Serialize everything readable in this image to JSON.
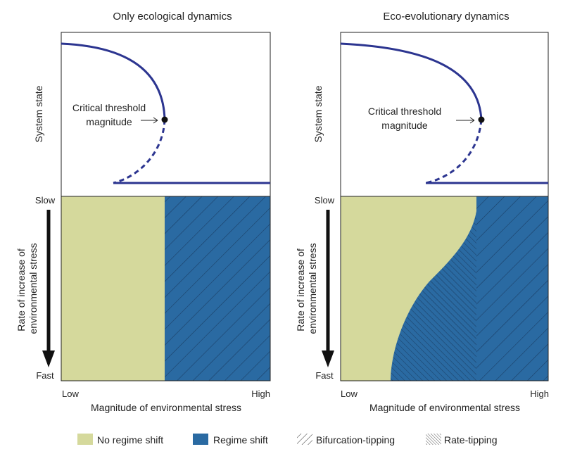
{
  "panels": [
    {
      "title": "Only ecological dynamics",
      "y_label_top": "System state",
      "threshold_label_line1": "Critical threshold",
      "threshold_label_line2": "magnitude",
      "y_label_bottom_line1": "Rate of increase of",
      "y_label_bottom_line2": "environmental stress",
      "slow_label": "Slow",
      "fast_label": "Fast",
      "low_label": "Low",
      "high_label": "High",
      "x_label": "Magnitude of environmental stress"
    },
    {
      "title": "Eco-evolutionary dynamics",
      "y_label_top": "System state",
      "threshold_label_line1": "Critical threshold",
      "threshold_label_line2": "magnitude",
      "y_label_bottom_line1": "Rate of increase of",
      "y_label_bottom_line2": "environmental stress",
      "slow_label": "Slow",
      "fast_label": "Fast",
      "low_label": "Low",
      "high_label": "High",
      "x_label": "Magnitude of environmental stress"
    }
  ],
  "legend": {
    "no_regime_shift": "No regime shift",
    "regime_shift": "Regime shift",
    "bifurcation_tipping": "Bifurcation-tipping",
    "rate_tipping": "Rate-tipping"
  },
  "colors": {
    "no_regime_shift": "#d5d99c",
    "regime_shift": "#2a6aa2",
    "curve": "#2c3590",
    "hatch": "#1b3f66"
  }
}
